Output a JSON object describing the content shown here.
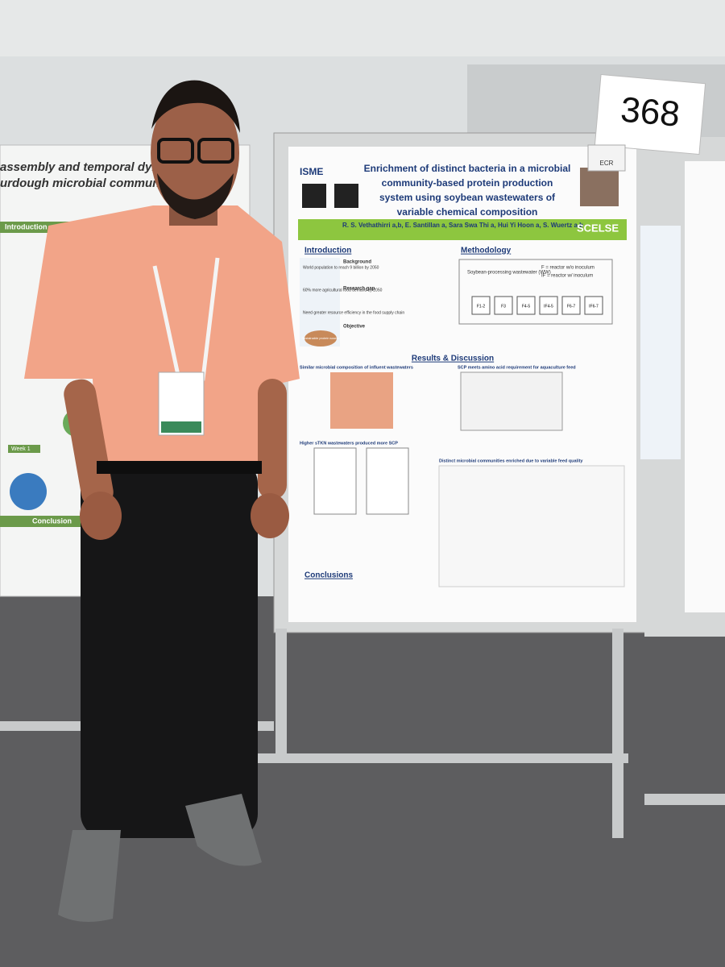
{
  "sign": {
    "number": "368",
    "tag": "ECR"
  },
  "left_poster": {
    "title_lines": [
      "assembly and temporal dynamic",
      "urdough microbial communities"
    ],
    "sections": [
      "Introduction",
      "Conclusion"
    ],
    "week_label": "Week 1"
  },
  "main_poster": {
    "logo": "ISME",
    "title_lines": [
      "Enrichment of distinct bacteria in a microbial",
      "community-based protein production",
      "system using soybean wastewaters of",
      "variable chemical composition"
    ],
    "authors": "R. S. Vethathirri a,b, E. Santillan a, Sara Swa Thi a, Hui Yi Hoon a, S. Wuertz a,b",
    "institute": "SCELSE",
    "introduction": {
      "heading": "Introduction",
      "facts": [
        "World population to reach 9 billion by 2050",
        "60% more agricultural food demand by 2050",
        "Need greater resource efficiency in the food supply chain"
      ],
      "badge": "Sustainable protein source",
      "subheadings": [
        "Background",
        "Research gap",
        "Objective"
      ]
    },
    "methodology": {
      "heading": "Methodology",
      "feed": "Soybean-processing wastewater (WW)",
      "legend": [
        "F = reactor w/o inoculum",
        "IF = reactor w/ inoculum"
      ],
      "reactors": [
        "F1-2",
        "F3",
        "F4-5",
        "IF4-5",
        "F6-7",
        "IF6-7"
      ]
    },
    "results": {
      "heading": "Results & Discussion",
      "subheadings": [
        "Similar microbial composition of influent wastewaters",
        "SCP meets amino acid requirement for aquaculture feed",
        "Higher sTKN wastewaters produced more SCP",
        "Distinct microbial communities enriched due to variable feed quality"
      ]
    },
    "conclusions": {
      "heading": "Conclusions"
    }
  }
}
